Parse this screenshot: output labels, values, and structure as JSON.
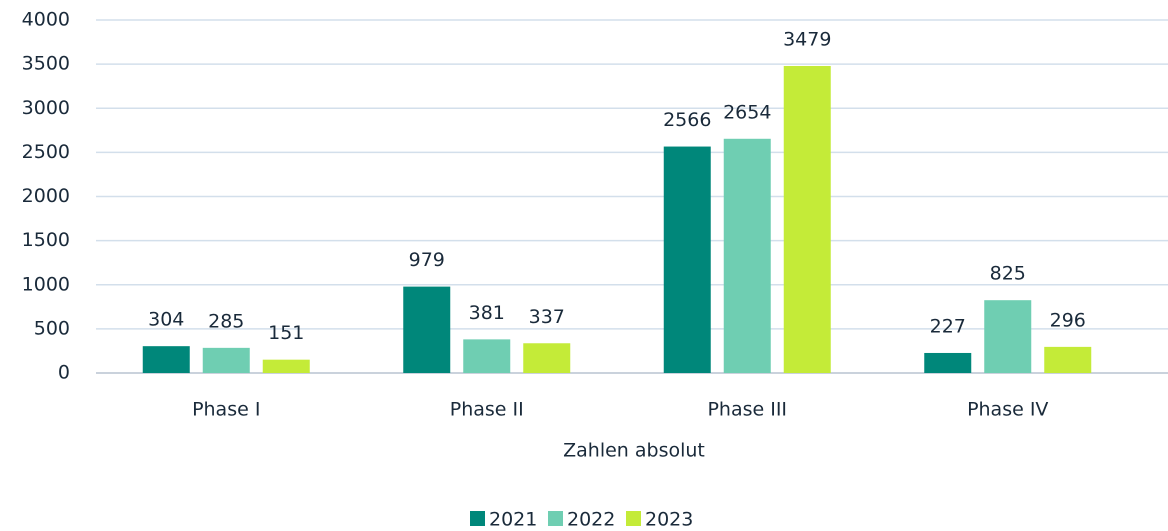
{
  "chart_data": {
    "type": "bar",
    "x_label": "Zahlen absolut",
    "categories": [
      "Phase I",
      "Phase II",
      "Phase III",
      "Phase IV"
    ],
    "series": [
      {
        "name": "2021",
        "color": "#00877a",
        "values": [
          304,
          979,
          2566,
          227
        ]
      },
      {
        "name": "2022",
        "color": "#6fceb2",
        "values": [
          285,
          381,
          2654,
          825
        ]
      },
      {
        "name": "2023",
        "color": "#c4eb38",
        "values": [
          151,
          337,
          3479,
          296
        ]
      }
    ],
    "ylim": [
      0,
      4000
    ],
    "yticks": [
      0,
      500,
      1000,
      1500,
      2000,
      2500,
      3000,
      3500,
      4000
    ],
    "grid": true,
    "legend": "bottom"
  }
}
